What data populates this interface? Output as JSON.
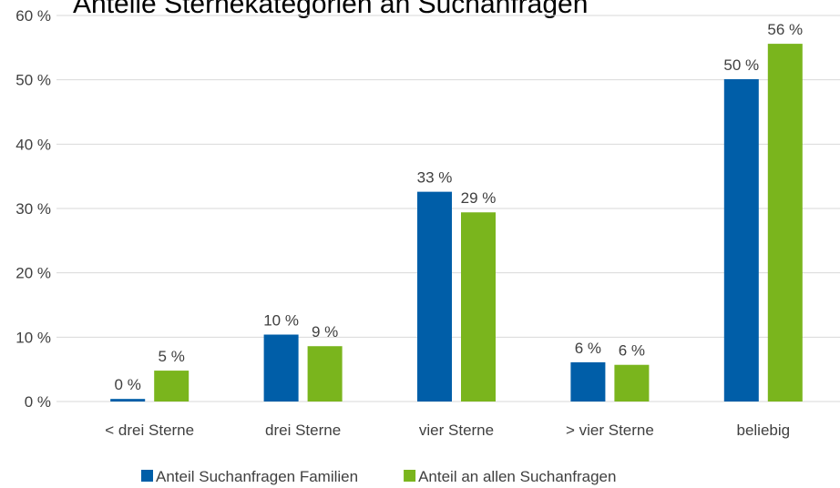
{
  "chart_data": {
    "type": "bar",
    "title": "Anteile Sternekategorien an Suchanfragen",
    "categories": [
      "< drei Sterne",
      "drei Sterne",
      "vier Sterne",
      "> vier Sterne",
      "beliebig"
    ],
    "series": [
      {
        "name": "Anteil Suchanfragen Familien",
        "color": "#005ea8",
        "values": [
          0.4,
          10.4,
          32.6,
          6.1,
          50.1
        ],
        "value_labels": [
          "0 %",
          "10 %",
          "33 %",
          "6 %",
          "50 %"
        ]
      },
      {
        "name": "Anteil an allen Suchanfragen",
        "color": "#7ab51d",
        "values": [
          4.8,
          8.6,
          29.4,
          5.7,
          55.6
        ],
        "value_labels": [
          "5 %",
          "9 %",
          "29 %",
          "6 %",
          "56 %"
        ]
      }
    ],
    "ylim": [
      0,
      60
    ],
    "yticks": [
      {
        "value": 0,
        "label": "0 %"
      },
      {
        "value": 10,
        "label": "10 %"
      },
      {
        "value": 20,
        "label": "20 %"
      },
      {
        "value": 30,
        "label": "30 %"
      },
      {
        "value": 40,
        "label": "40 %"
      },
      {
        "value": 50,
        "label": "50 %"
      },
      {
        "value": 60,
        "label": "60 %"
      }
    ],
    "grid": true,
    "legend": "bottom"
  }
}
